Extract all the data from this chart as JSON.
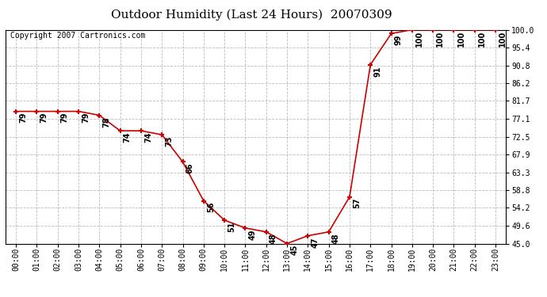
{
  "title": "Outdoor Humidity (Last 24 Hours)  20070309",
  "copyright": "Copyright 2007 Cartronics.com",
  "hours": [
    0,
    1,
    2,
    3,
    4,
    5,
    6,
    7,
    8,
    9,
    10,
    11,
    12,
    13,
    14,
    15,
    16,
    17,
    18,
    19,
    20,
    21,
    22,
    23
  ],
  "values": [
    79,
    79,
    79,
    79,
    78,
    74,
    74,
    73,
    66,
    56,
    51,
    49,
    48,
    45,
    47,
    48,
    57,
    91,
    99,
    100,
    100,
    100,
    100,
    100
  ],
  "yticks": [
    45.0,
    49.6,
    54.2,
    58.8,
    63.3,
    67.9,
    72.5,
    77.1,
    81.7,
    86.2,
    90.8,
    95.4,
    100.0
  ],
  "ylim": [
    45.0,
    100.0
  ],
  "line_color": "#cc0000",
  "marker_color": "#cc0000",
  "background_color": "#ffffff",
  "grid_color": "#bbbbbb",
  "title_fontsize": 11,
  "label_fontsize": 7,
  "tick_fontsize": 7,
  "copyright_fontsize": 7,
  "value_fontsize": 7
}
